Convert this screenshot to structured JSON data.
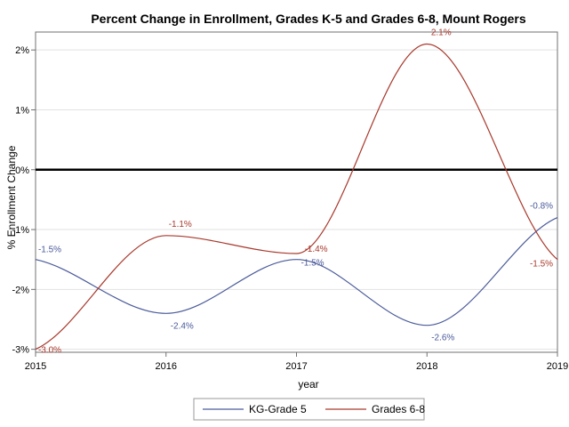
{
  "chart_data": {
    "type": "line",
    "title": "Percent Change in Enrollment, Grades K-5 and Grades 6-8, Mount Rogers",
    "xlabel": "year",
    "ylabel": "% Enrollment Change",
    "x": [
      2015,
      2016,
      2017,
      2018,
      2019
    ],
    "x_tick_labels": [
      "2015",
      "2016",
      "2017",
      "2018",
      "2019"
    ],
    "y_ticks": [
      -3,
      -2,
      -1,
      0,
      1,
      2
    ],
    "y_tick_labels": [
      "-3%",
      "-2%",
      "-1%",
      "0%",
      "1%",
      "2%"
    ],
    "xlim": [
      2015,
      2019
    ],
    "ylim": [
      -3.05,
      2.3
    ],
    "reference_line": 0,
    "series": [
      {
        "name": "KG-Grade 5",
        "color": "#4a5a9a",
        "values": [
          -1.5,
          -2.4,
          -1.5,
          -2.6,
          -0.8
        ],
        "labels": [
          "-1.5%",
          "-2.4%",
          "-1.5%",
          "-2.6%",
          "-0.8%"
        ]
      },
      {
        "name": "Grades 6-8",
        "color": "#a8392c",
        "values": [
          -3.0,
          -1.1,
          -1.4,
          2.1,
          -1.5
        ],
        "labels": [
          "-3.0%",
          "-1.1%",
          "-1.4%",
          "2.1%",
          "-1.5%"
        ]
      }
    ],
    "legend_position": "bottom",
    "grid": "horizontal"
  }
}
